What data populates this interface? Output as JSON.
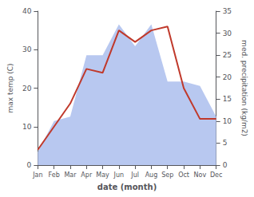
{
  "chart_data": {
    "type": "line",
    "categories": [
      "Jan",
      "Feb",
      "Mar",
      "Apr",
      "May",
      "Jun",
      "Jul",
      "Aug",
      "Sep",
      "Oct",
      "Nov",
      "Dec"
    ],
    "series": [
      {
        "type": "area",
        "color": "#b8c8f0",
        "axis": "y2",
        "values": [
          3,
          10,
          11,
          25,
          25,
          32,
          27,
          32,
          19,
          19,
          18,
          11
        ]
      },
      {
        "type": "line",
        "color": "#c0392b",
        "values": [
          4,
          10,
          16,
          25,
          24,
          35,
          32,
          35,
          36,
          20,
          12,
          12
        ]
      }
    ],
    "xlabel": "date (month)",
    "ylabel": "max temp (C)",
    "y2label": "med. precipitation (kg/m2)",
    "ylim": [
      0,
      40
    ],
    "yticks": [
      0,
      10,
      20,
      30,
      40
    ],
    "y2lim": [
      0,
      35
    ],
    "y2ticks": [
      0,
      5,
      10,
      15,
      20,
      25,
      30,
      35
    ],
    "grid": false
  }
}
